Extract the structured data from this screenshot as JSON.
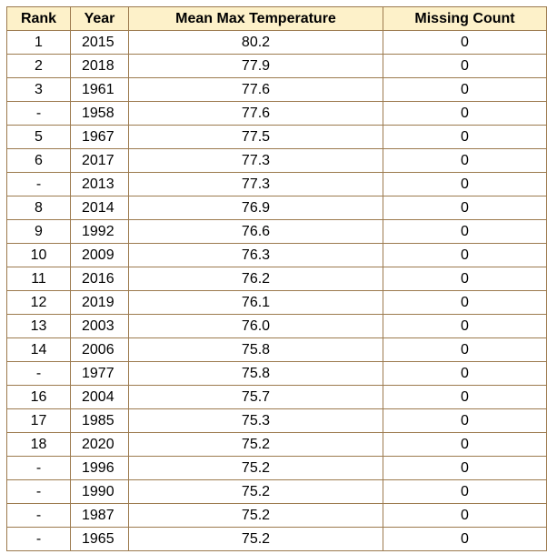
{
  "table": {
    "headers": {
      "rank": "Rank",
      "year": "Year",
      "temp": "Mean Max Temperature",
      "missing": "Missing Count"
    },
    "rows": [
      {
        "rank": "1",
        "year": "2015",
        "temp": "80.2",
        "missing": "0"
      },
      {
        "rank": "2",
        "year": "2018",
        "temp": "77.9",
        "missing": "0"
      },
      {
        "rank": "3",
        "year": "1961",
        "temp": "77.6",
        "missing": "0"
      },
      {
        "rank": "-",
        "year": "1958",
        "temp": "77.6",
        "missing": "0"
      },
      {
        "rank": "5",
        "year": "1967",
        "temp": "77.5",
        "missing": "0"
      },
      {
        "rank": "6",
        "year": "2017",
        "temp": "77.3",
        "missing": "0"
      },
      {
        "rank": "-",
        "year": "2013",
        "temp": "77.3",
        "missing": "0"
      },
      {
        "rank": "8",
        "year": "2014",
        "temp": "76.9",
        "missing": "0"
      },
      {
        "rank": "9",
        "year": "1992",
        "temp": "76.6",
        "missing": "0"
      },
      {
        "rank": "10",
        "year": "2009",
        "temp": "76.3",
        "missing": "0"
      },
      {
        "rank": "11",
        "year": "2016",
        "temp": "76.2",
        "missing": "0"
      },
      {
        "rank": "12",
        "year": "2019",
        "temp": "76.1",
        "missing": "0"
      },
      {
        "rank": "13",
        "year": "2003",
        "temp": "76.0",
        "missing": "0"
      },
      {
        "rank": "14",
        "year": "2006",
        "temp": "75.8",
        "missing": "0"
      },
      {
        "rank": "-",
        "year": "1977",
        "temp": "75.8",
        "missing": "0"
      },
      {
        "rank": "16",
        "year": "2004",
        "temp": "75.7",
        "missing": "0"
      },
      {
        "rank": "17",
        "year": "1985",
        "temp": "75.3",
        "missing": "0"
      },
      {
        "rank": "18",
        "year": "2020",
        "temp": "75.2",
        "missing": "0"
      },
      {
        "rank": "-",
        "year": "1996",
        "temp": "75.2",
        "missing": "0"
      },
      {
        "rank": "-",
        "year": "1990",
        "temp": "75.2",
        "missing": "0"
      },
      {
        "rank": "-",
        "year": "1987",
        "temp": "75.2",
        "missing": "0"
      },
      {
        "rank": "-",
        "year": "1965",
        "temp": "75.2",
        "missing": "0"
      }
    ]
  },
  "colors": {
    "header_background": "#fdf1c9",
    "border": "#9c7a4e"
  }
}
